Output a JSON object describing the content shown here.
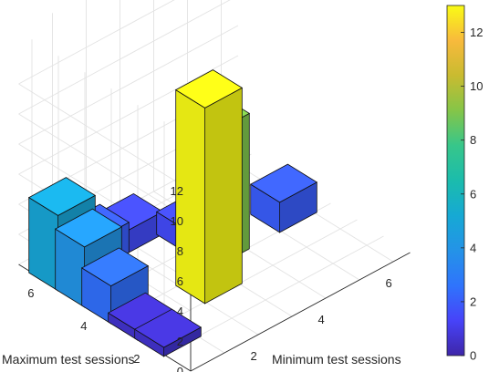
{
  "chart_data": {
    "type": "bar3d",
    "xlabel": "Minimum test sessions",
    "ylabel": "Maximum test sessions",
    "x_ticks": [
      2,
      4,
      6
    ],
    "y_ticks": [
      2,
      4,
      6
    ],
    "z_ticks": [
      0,
      2,
      4,
      6,
      8,
      10,
      12
    ],
    "zlim": [
      0,
      13
    ],
    "grid": true,
    "colormap": "parula",
    "colorbar": {
      "location": "right",
      "ticks": [
        0,
        2,
        4,
        6,
        8,
        10,
        12
      ],
      "clim": [
        0,
        13
      ]
    },
    "bars": [
      {
        "min_sessions": 1,
        "max_sessions": 5,
        "value": 4
      },
      {
        "min_sessions": 1,
        "max_sessions": 6,
        "value": 5
      },
      {
        "min_sessions": 1,
        "max_sessions": 4,
        "value": 2.5
      },
      {
        "min_sessions": 1,
        "max_sessions": 3,
        "value": 0.6
      },
      {
        "min_sessions": 1,
        "max_sessions": 2,
        "value": 0.6
      },
      {
        "min_sessions": 2,
        "max_sessions": 6,
        "value": 2
      },
      {
        "min_sessions": 3,
        "max_sessions": 3,
        "value": 13
      },
      {
        "min_sessions": 3,
        "max_sessions": 6,
        "value": 1.5
      },
      {
        "min_sessions": 4,
        "max_sessions": 4,
        "value": 9
      },
      {
        "min_sessions": 4,
        "max_sessions": 5,
        "value": 1.5
      },
      {
        "min_sessions": 6,
        "max_sessions": 4,
        "value": 2
      }
    ]
  }
}
